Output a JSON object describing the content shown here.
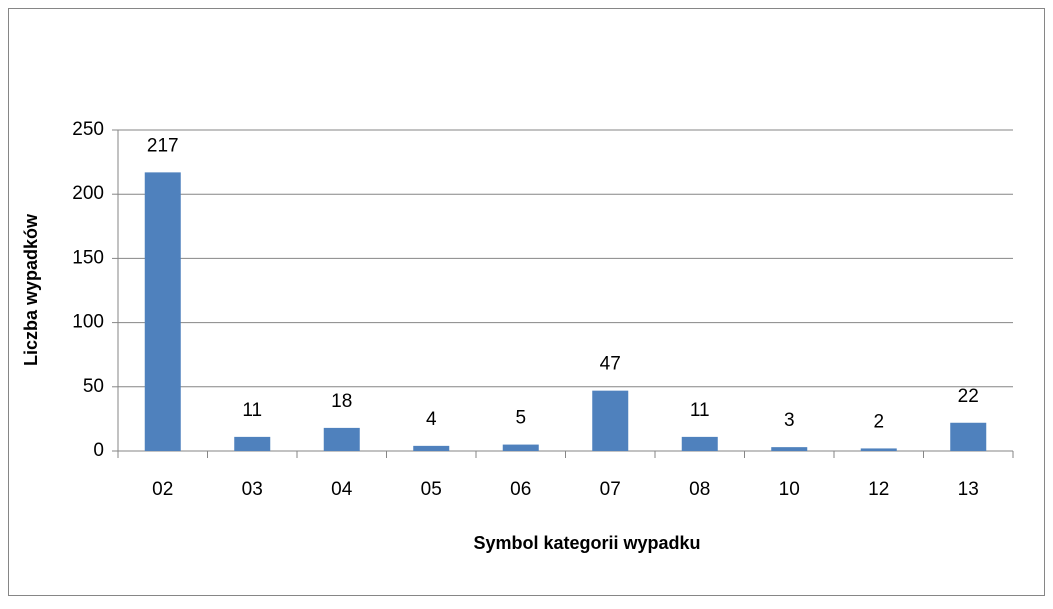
{
  "chart_data": {
    "type": "bar",
    "xlabel": "Symbol kategorii wypadku",
    "ylabel": "Liczba wypadków",
    "categories": [
      "02",
      "03",
      "04",
      "05",
      "06",
      "07",
      "08",
      "10",
      "12",
      "13"
    ],
    "values": [
      217,
      11,
      18,
      4,
      5,
      47,
      11,
      3,
      2,
      22
    ],
    "color": "#4f81bd",
    "ylim": [
      0,
      250
    ],
    "yticks": [
      0,
      50,
      100,
      150,
      200,
      250
    ],
    "grid": true,
    "data_labels": true
  }
}
